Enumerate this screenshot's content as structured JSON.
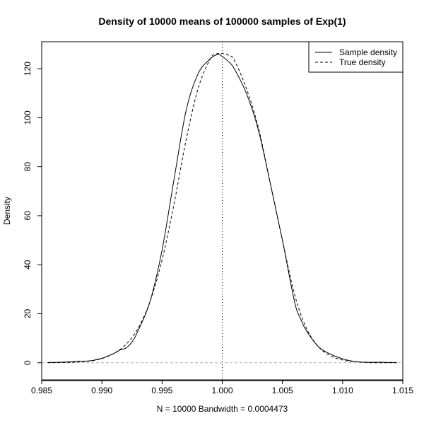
{
  "chart_data": {
    "type": "line",
    "title": "Density of 10000 means of 100000 samples of Exp(1)",
    "xlabel": "N = 10000   Bandwidth = 0.0004473",
    "ylabel": "Density",
    "xlim": [
      0.985,
      1.015
    ],
    "ylim": [
      -7,
      131
    ],
    "x_ticks": [
      0.985,
      0.99,
      0.995,
      1.0,
      1.005,
      1.01,
      1.015
    ],
    "x_tick_labels": [
      "0.985",
      "0.990",
      "0.995",
      "1.000",
      "1.005",
      "1.010",
      "1.015"
    ],
    "y_ticks": [
      0,
      20,
      40,
      60,
      80,
      100,
      120
    ],
    "y_tick_labels": [
      "0",
      "20",
      "40",
      "60",
      "80",
      "100",
      "120"
    ],
    "reference_lines": [
      {
        "orientation": "horizontal",
        "value": 0,
        "style": "dashed",
        "color": "#b0b0b0"
      },
      {
        "orientation": "vertical",
        "value": 1.0,
        "style": "dotted",
        "color": "#000000"
      }
    ],
    "legend_position": "top-right",
    "grid": false,
    "series": [
      {
        "name": "Sample density",
        "style": "solid",
        "color": "#000000",
        "x": [
          0.9855,
          0.987,
          0.988,
          0.989,
          0.99,
          0.991,
          0.9915,
          0.992,
          0.9925,
          0.993,
          0.994,
          0.995,
          0.996,
          0.997,
          0.998,
          0.999,
          0.9995,
          0.99975,
          1.0,
          1.0005,
          1.001,
          1.002,
          1.003,
          1.004,
          1.005,
          1.006,
          1.0065,
          1.007,
          1.008,
          1.009,
          1.01,
          1.011,
          1.012,
          1.013,
          1.0145
        ],
        "y": [
          0.1,
          0.3,
          0.6,
          0.8,
          1.8,
          3.8,
          5.2,
          6.0,
          8.5,
          13.0,
          25.0,
          46.0,
          75.0,
          103.0,
          118.0,
          124.0,
          125.6,
          125.8,
          125.0,
          123.0,
          120.0,
          110.0,
          95.0,
          73.0,
          50.0,
          25.0,
          18.0,
          13.0,
          6.5,
          3.5,
          1.6,
          0.5,
          0.2,
          0.2,
          0.1
        ]
      },
      {
        "name": "True density",
        "style": "dashed",
        "color": "#000000",
        "x": [
          0.9855,
          0.987,
          0.988,
          0.989,
          0.99,
          0.991,
          0.992,
          0.993,
          0.994,
          0.995,
          0.996,
          0.997,
          0.998,
          0.999,
          0.9995,
          1.0,
          1.0005,
          1.001,
          1.002,
          1.003,
          1.004,
          1.005,
          1.006,
          1.007,
          1.008,
          1.009,
          1.01,
          1.011,
          1.012,
          1.013,
          1.0145
        ],
        "y": [
          0.0,
          0.1,
          0.3,
          0.7,
          1.7,
          3.8,
          7.5,
          14.0,
          25.0,
          42.0,
          65.0,
          91.0,
          112.0,
          124.0,
          126.0,
          126.2,
          125.5,
          123.5,
          112.0,
          96.0,
          73.0,
          50.0,
          28.0,
          14.0,
          6.5,
          2.8,
          1.1,
          0.4,
          0.1,
          0.0,
          0.0
        ]
      }
    ]
  }
}
